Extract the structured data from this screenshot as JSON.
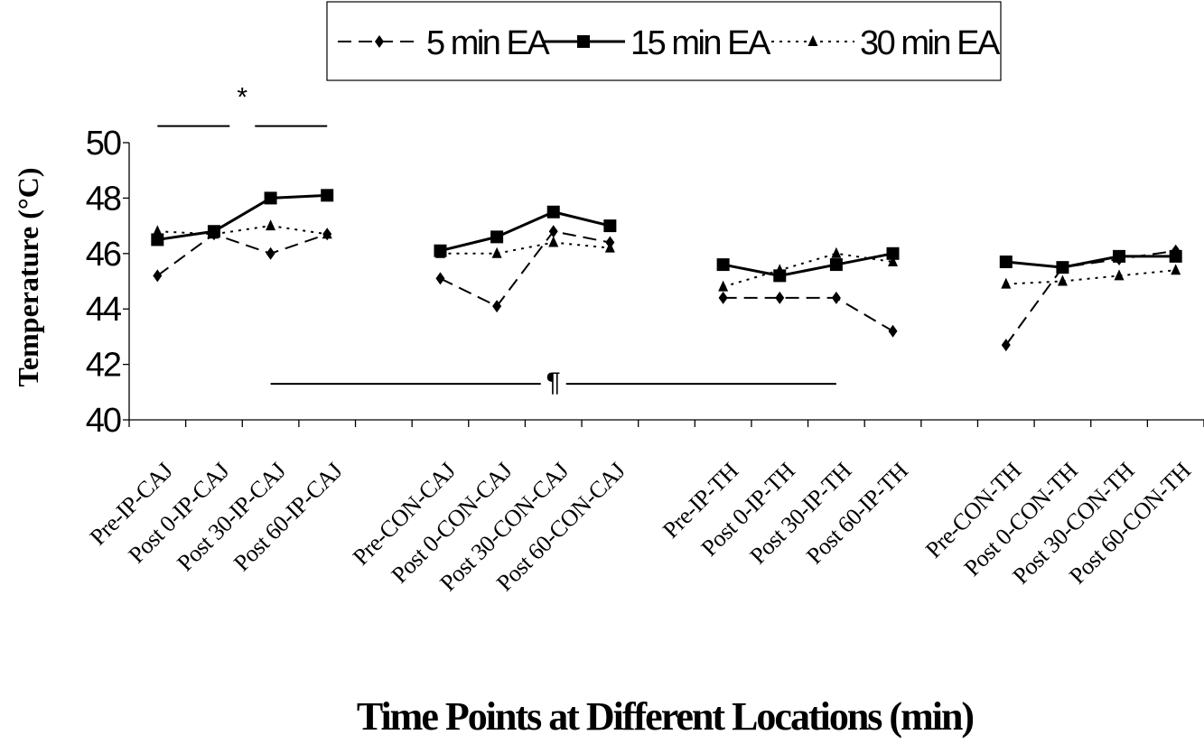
{
  "chart_data": {
    "type": "line",
    "title": "",
    "xlabel": "Time Points at Different Locations (min)",
    "ylabel": "Temperature (°C)",
    "ylim": [
      40,
      50
    ],
    "yticks": [
      40,
      42,
      44,
      46,
      48,
      50
    ],
    "grid": false,
    "legend": "top-center",
    "categories": [
      "Pre-IP-CAJ",
      "Post 0-IP-CAJ",
      "Post 30-IP-CAJ",
      "Post 60-IP-CAJ",
      "",
      "Pre-CON-CAJ",
      "Post 0-CON-CAJ",
      "Post 30-CON-CAJ",
      "Post 60-CON-CAJ",
      "",
      "Pre-IP-TH",
      "Post 0-IP-TH",
      "Post 30-IP-TH",
      "Post 60-IP-TH",
      "",
      "Pre-CON-TH",
      "Post 0-CON-TH",
      "Post 30-CON-TH",
      "Post 60-CON-TH"
    ],
    "series": [
      {
        "name": "5 min EA",
        "style": "dashed",
        "marker": "diamond",
        "values": [
          45.2,
          46.7,
          46.0,
          46.7,
          null,
          45.1,
          44.1,
          46.8,
          46.4,
          null,
          44.4,
          44.4,
          44.4,
          43.2,
          null,
          42.7,
          45.5,
          45.8,
          46.1
        ]
      },
      {
        "name": "15 min EA",
        "style": "solid",
        "marker": "square",
        "values": [
          46.5,
          46.8,
          48.0,
          48.1,
          null,
          46.1,
          46.6,
          47.5,
          47.0,
          null,
          45.6,
          45.2,
          45.6,
          46.0,
          null,
          45.7,
          45.5,
          45.9,
          45.9
        ]
      },
      {
        "name": "30 min EA",
        "style": "dotted",
        "marker": "triangle",
        "values": [
          46.8,
          46.7,
          47.0,
          46.7,
          null,
          46.0,
          46.0,
          46.4,
          46.2,
          null,
          44.8,
          45.4,
          46.0,
          45.7,
          null,
          44.9,
          45.0,
          45.2,
          45.4
        ]
      }
    ],
    "annotations": [
      {
        "text": "*",
        "from_category": 0,
        "to_category": 3,
        "y": 50.6
      },
      {
        "text": "¶",
        "from_category": 2,
        "to_category": 12,
        "y": 41.3
      }
    ]
  }
}
